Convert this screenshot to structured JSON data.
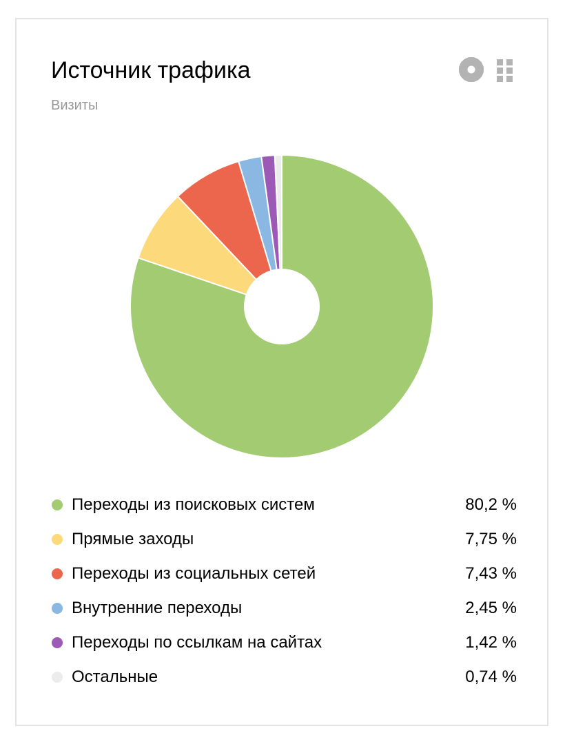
{
  "widget": {
    "title": "Источник трафика",
    "subtitle": "Визиты",
    "icons": [
      "gear-icon",
      "drag-handle-icon"
    ],
    "icon_color": "#b3b3b3"
  },
  "chart_data": {
    "type": "pie",
    "style": "donut",
    "ylabel": "Визиты",
    "legend_position": "bottom",
    "slices": [
      {
        "label": "Переходы из поисковых систем",
        "value": 80.2,
        "display": "80,2 %",
        "color": "#a3cb72"
      },
      {
        "label": "Прямые заходы",
        "value": 7.75,
        "display": "7,75 %",
        "color": "#fcd97a"
      },
      {
        "label": "Переходы из социальных сетей",
        "value": 7.43,
        "display": "7,43 %",
        "color": "#ec664d"
      },
      {
        "label": "Внутренние переходы",
        "value": 2.45,
        "display": "2,45 %",
        "color": "#8bb7e3"
      },
      {
        "label": "Переходы по ссылкам на сайтах",
        "value": 1.42,
        "display": "1,42 %",
        "color": "#9c59b6"
      },
      {
        "label": "Остальные",
        "value": 0.74,
        "display": "0,74 %",
        "color": "#ececec"
      }
    ]
  }
}
